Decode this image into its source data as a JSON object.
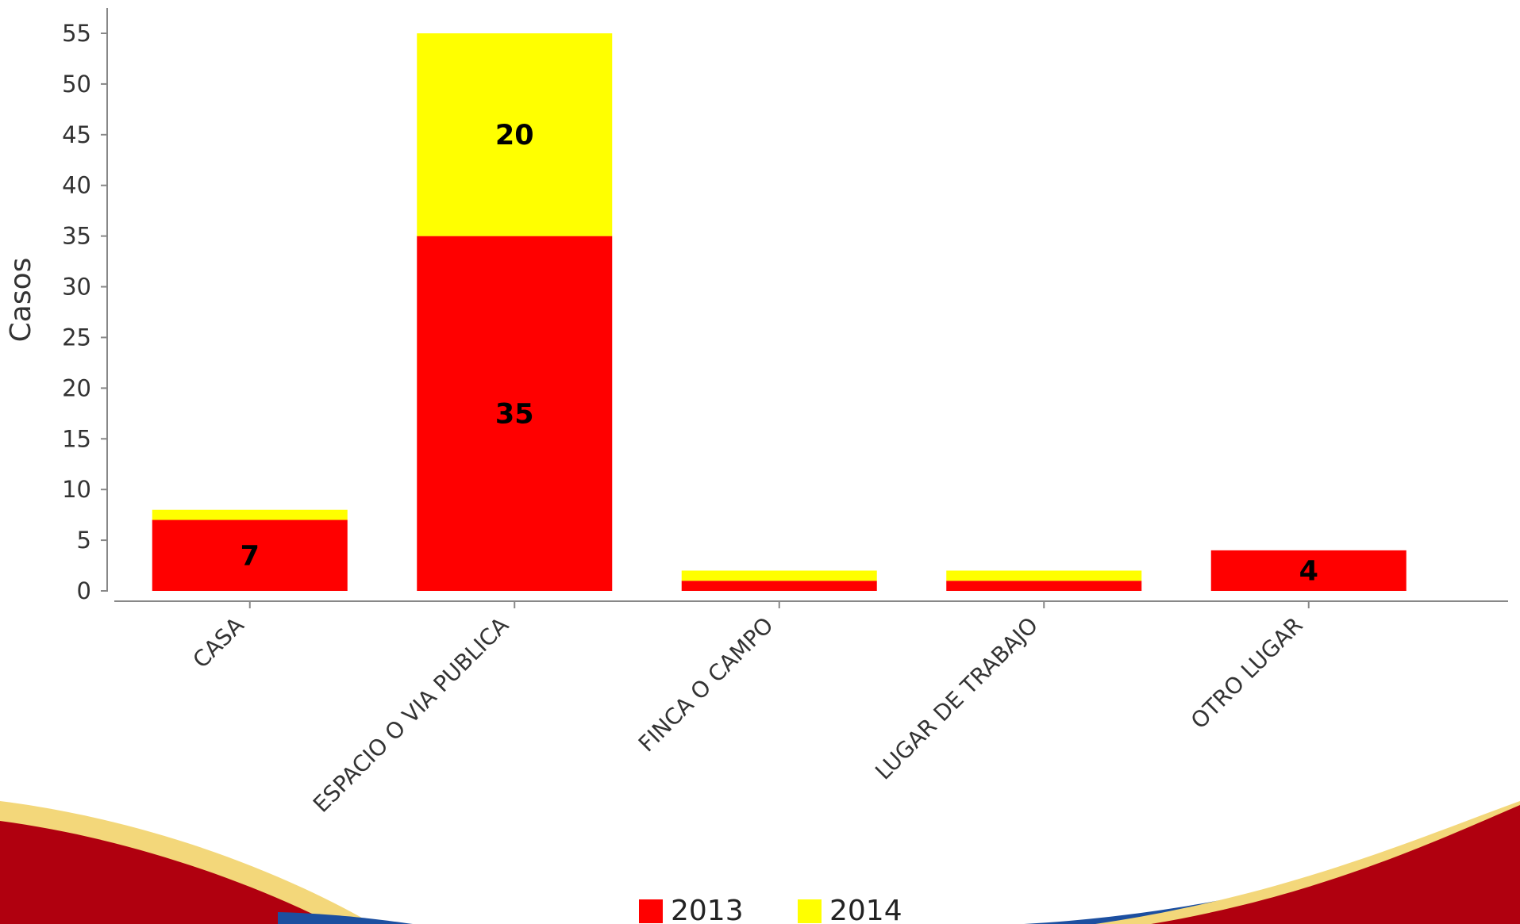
{
  "chart_data": {
    "type": "bar",
    "stacked": true,
    "categories": [
      "CASA",
      "ESPACIO O VIA PUBLICA",
      "FINCA O CAMPO",
      "LUGAR DE TRABAJO",
      "OTRO LUGAR"
    ],
    "series": [
      {
        "name": "2013",
        "color": "#ff0000",
        "values": [
          7,
          35,
          1,
          1,
          4
        ]
      },
      {
        "name": "2014",
        "color": "#ffff00",
        "values": [
          1,
          20,
          1,
          1,
          0
        ]
      }
    ],
    "data_labels": [
      {
        "series": 0,
        "category": 0,
        "text": "7"
      },
      {
        "series": 0,
        "category": 1,
        "text": "35"
      },
      {
        "series": 1,
        "category": 1,
        "text": "20"
      },
      {
        "series": 0,
        "category": 4,
        "text": "4"
      }
    ],
    "ylabel": "Casos",
    "ylim": [
      0,
      55
    ],
    "yticks": [
      0,
      5,
      10,
      15,
      20,
      25,
      30,
      35,
      40,
      45,
      50,
      55
    ],
    "grid": false,
    "legend": "bottom-center"
  },
  "decoration": {
    "footer_colors": [
      "#b0000f",
      "#f3d77a",
      "#1c4fa0"
    ]
  }
}
